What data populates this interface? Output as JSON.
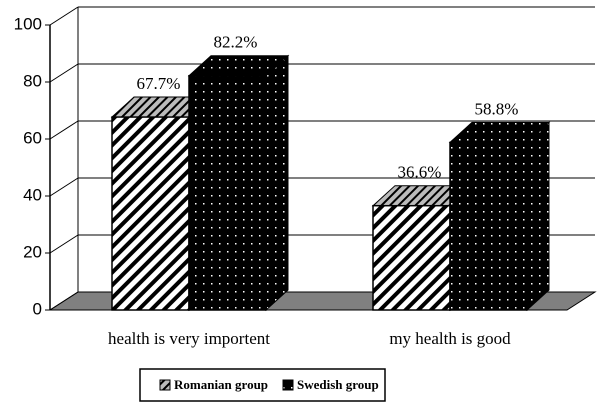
{
  "chart_data": {
    "type": "bar3d",
    "categories": [
      "health is very importent",
      "my health is good"
    ],
    "series": [
      {
        "name": "Romanian group",
        "color": "#ffffff",
        "values": [
          67.7,
          36.6
        ],
        "value_labels": [
          "67.7%",
          "36.6%"
        ]
      },
      {
        "name": "Swedish group",
        "color": "#000000",
        "values": [
          82.2,
          58.8
        ],
        "value_labels": [
          "82.2%",
          "58.8%"
        ]
      }
    ],
    "ylim": [
      0,
      100
    ],
    "yticks": [
      0,
      20,
      40,
      60,
      80,
      100
    ],
    "grid": true,
    "legend": "bottom"
  }
}
